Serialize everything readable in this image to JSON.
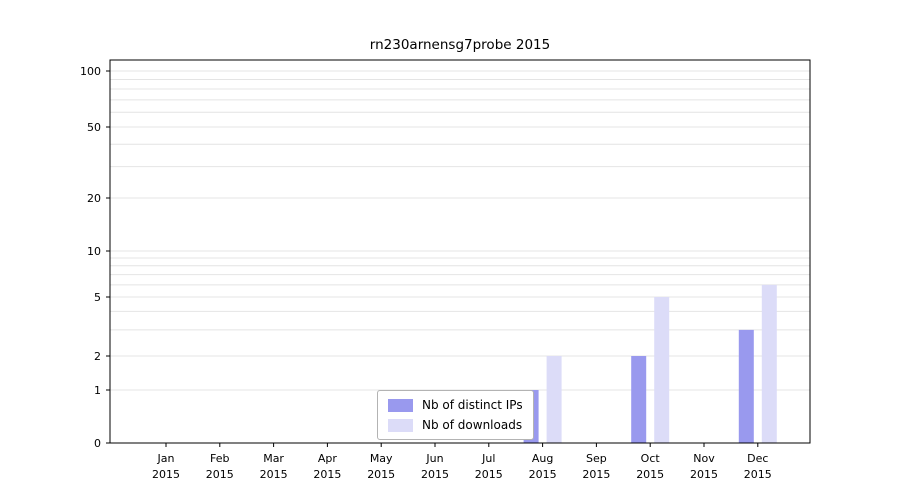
{
  "chart_data": {
    "type": "bar",
    "title": "rn230arnensg7probe 2015",
    "categories": [
      "Jan",
      "Feb",
      "Mar",
      "Apr",
      "May",
      "Jun",
      "Jul",
      "Aug",
      "Sep",
      "Oct",
      "Nov",
      "Dec"
    ],
    "year": "2015",
    "series": [
      {
        "name": "Nb of distinct IPs",
        "color": "#9999ee",
        "values": [
          0,
          0,
          0,
          0,
          0,
          0,
          0,
          1,
          0,
          2,
          0,
          3
        ]
      },
      {
        "name": "Nb of downloads",
        "color": "#dcdcf8",
        "values": [
          0,
          0,
          0,
          0,
          0,
          0,
          0,
          2,
          0,
          5,
          0,
          6
        ]
      }
    ],
    "yticks": [
      0,
      1,
      2,
      5,
      10,
      20,
      50,
      100
    ],
    "ylim": [
      0,
      100
    ],
    "xlabel": "",
    "ylabel": "",
    "scale": "symlog",
    "grid": "horizontal-minor-log",
    "legend_position": "bottom-center",
    "axis_color": "#000000",
    "grid_color": "#e4e4e4"
  }
}
